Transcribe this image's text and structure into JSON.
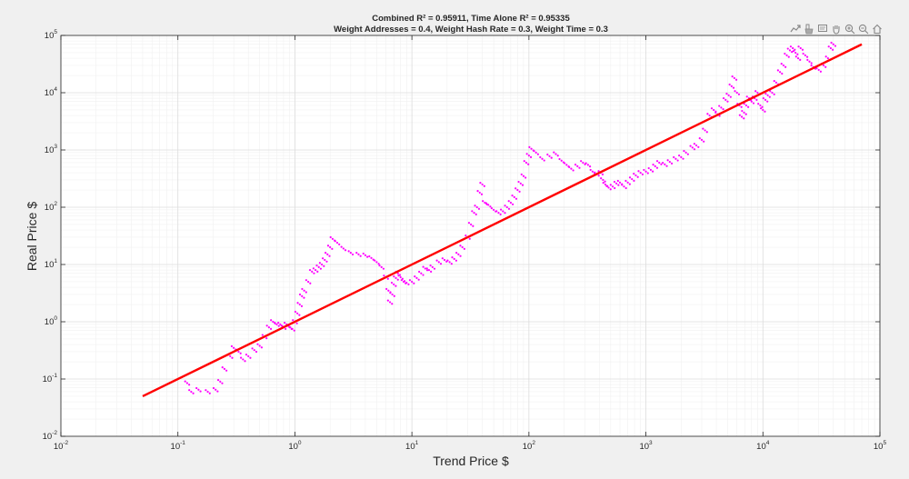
{
  "toolbar": {
    "icons": [
      "export-icon",
      "brush-icon",
      "datatip-icon",
      "pan-icon",
      "zoom-in-icon",
      "zoom-out-icon",
      "home-icon"
    ]
  },
  "colors": {
    "background": "#f0f0f0",
    "axes_background": "#ffffff",
    "scatter": "#ff00ff",
    "trend": "#ff0000",
    "grid": "#e0e0e0"
  },
  "chart_data": {
    "type": "scatter",
    "title_line1": "Combined R² = 0.95911, Time Alone R² = 0.95335",
    "title_line2": "Weight Addresses = 0.4, Weight Hash Rate = 0.3, Weight Time = 0.3",
    "xlabel": "Trend Price $",
    "ylabel": "Real Price $",
    "xscale": "log",
    "yscale": "log",
    "xlim": [
      0.01,
      100000
    ],
    "ylim": [
      0.01,
      100000
    ],
    "grid": true,
    "minor_grid": true,
    "x_ticks": [
      {
        "base": "10",
        "exp": "-2"
      },
      {
        "base": "10",
        "exp": "-1"
      },
      {
        "base": "10",
        "exp": "0"
      },
      {
        "base": "10",
        "exp": "1"
      },
      {
        "base": "10",
        "exp": "2"
      },
      {
        "base": "10",
        "exp": "3"
      },
      {
        "base": "10",
        "exp": "4"
      },
      {
        "base": "10",
        "exp": "5"
      }
    ],
    "y_ticks": [
      {
        "base": "10",
        "exp": "-2"
      },
      {
        "base": "10",
        "exp": "-1"
      },
      {
        "base": "10",
        "exp": "0"
      },
      {
        "base": "10",
        "exp": "1"
      },
      {
        "base": "10",
        "exp": "2"
      },
      {
        "base": "10",
        "exp": "3"
      },
      {
        "base": "10",
        "exp": "4"
      },
      {
        "base": "10",
        "exp": "5"
      }
    ],
    "series": [
      {
        "kind": "scatter",
        "color": "#ff00ff",
        "points": [
          [
            0.12,
            0.085
          ],
          [
            0.13,
            0.06
          ],
          [
            0.15,
            0.065
          ],
          [
            0.18,
            0.06
          ],
          [
            0.21,
            0.065
          ],
          [
            0.23,
            0.09
          ],
          [
            0.25,
            0.15
          ],
          [
            0.28,
            0.25
          ],
          [
            0.3,
            0.35
          ],
          [
            0.33,
            0.3
          ],
          [
            0.36,
            0.22
          ],
          [
            0.4,
            0.25
          ],
          [
            0.45,
            0.32
          ],
          [
            0.5,
            0.38
          ],
          [
            0.55,
            0.55
          ],
          [
            0.6,
            0.8
          ],
          [
            0.65,
            1.0
          ],
          [
            0.7,
            0.9
          ],
          [
            0.75,
            0.9
          ],
          [
            0.8,
            0.8
          ],
          [
            0.85,
            0.9
          ],
          [
            0.9,
            0.8
          ],
          [
            0.95,
            0.75
          ],
          [
            1.0,
            1.0
          ],
          [
            1.05,
            1.4
          ],
          [
            1.1,
            2.0
          ],
          [
            1.15,
            2.8
          ],
          [
            1.2,
            3.5
          ],
          [
            1.3,
            5.0
          ],
          [
            1.4,
            7.5
          ],
          [
            1.5,
            8.0
          ],
          [
            1.6,
            9.0
          ],
          [
            1.7,
            10.0
          ],
          [
            1.8,
            12.0
          ],
          [
            1.9,
            15.0
          ],
          [
            2.0,
            20.0
          ],
          [
            2.1,
            28.0
          ],
          [
            2.3,
            24.0
          ],
          [
            2.6,
            19.0
          ],
          [
            3.0,
            16.0
          ],
          [
            3.5,
            15.0
          ],
          [
            4.0,
            14.5
          ],
          [
            4.5,
            13.0
          ],
          [
            5.0,
            11.0
          ],
          [
            5.5,
            9.0
          ],
          [
            6.0,
            6.0
          ],
          [
            6.3,
            3.5
          ],
          [
            6.5,
            2.2
          ],
          [
            6.8,
            3.0
          ],
          [
            7.0,
            4.5
          ],
          [
            7.3,
            5.8
          ],
          [
            7.6,
            7.0
          ],
          [
            8.0,
            6.0
          ],
          [
            8.5,
            5.0
          ],
          [
            9.0,
            4.8
          ],
          [
            10.0,
            5.0
          ],
          [
            11.0,
            5.8
          ],
          [
            12.0,
            7.0
          ],
          [
            13.0,
            8.5
          ],
          [
            14.0,
            8.0
          ],
          [
            15.0,
            9.0
          ],
          [
            17.0,
            11.0
          ],
          [
            19.0,
            12.0
          ],
          [
            21.0,
            11.0
          ],
          [
            23.0,
            12.5
          ],
          [
            25.0,
            15.0
          ],
          [
            27.0,
            20.0
          ],
          [
            30.0,
            30.0
          ],
          [
            32.0,
            50.0
          ],
          [
            34.0,
            80.0
          ],
          [
            36.0,
            100.0
          ],
          [
            38.0,
            180.0
          ],
          [
            40.0,
            250.0
          ],
          [
            42.0,
            120.0
          ],
          [
            45.0,
            110.0
          ],
          [
            50.0,
            90.0
          ],
          [
            55.0,
            80.0
          ],
          [
            60.0,
            85.0
          ],
          [
            65.0,
            100.0
          ],
          [
            70.0,
            120.0
          ],
          [
            75.0,
            150.0
          ],
          [
            80.0,
            200.0
          ],
          [
            85.0,
            260.0
          ],
          [
            90.0,
            350.0
          ],
          [
            95.0,
            600.0
          ],
          [
            100.0,
            800.0
          ],
          [
            105.0,
            1050.0
          ],
          [
            115.0,
            900.0
          ],
          [
            130.0,
            700.0
          ],
          [
            150.0,
            780.0
          ],
          [
            170.0,
            850.0
          ],
          [
            190.0,
            650.0
          ],
          [
            210.0,
            550.0
          ],
          [
            230.0,
            470.0
          ],
          [
            260.0,
            520.0
          ],
          [
            290.0,
            600.0
          ],
          [
            320.0,
            550.0
          ],
          [
            350.0,
            420.0
          ],
          [
            380.0,
            380.0
          ],
          [
            410.0,
            400.0
          ],
          [
            430.0,
            300.0
          ],
          [
            450.0,
            250.0
          ],
          [
            480.0,
            220.0
          ],
          [
            520.0,
            230.0
          ],
          [
            560.0,
            260.0
          ],
          [
            600.0,
            270.0
          ],
          [
            650.0,
            230.0
          ],
          [
            700.0,
            270.0
          ],
          [
            760.0,
            310.0
          ],
          [
            820.0,
            360.0
          ],
          [
            900.0,
            400.0
          ],
          [
            1000.0,
            420.0
          ],
          [
            1100.0,
            450.0
          ],
          [
            1200.0,
            520.0
          ],
          [
            1300.0,
            600.0
          ],
          [
            1450.0,
            560.0
          ],
          [
            1600.0,
            620.0
          ],
          [
            1800.0,
            700.0
          ],
          [
            2000.0,
            750.0
          ],
          [
            2200.0,
            900.0
          ],
          [
            2500.0,
            1100.0
          ],
          [
            2700.0,
            1200.0
          ],
          [
            3000.0,
            1500.0
          ],
          [
            3200.0,
            2200.0
          ],
          [
            3500.0,
            4000.0
          ],
          [
            3800.0,
            5000.0
          ],
          [
            4100.0,
            4200.0
          ],
          [
            4400.0,
            5500.0
          ],
          [
            4800.0,
            7500.0
          ],
          [
            5100.0,
            9000.0
          ],
          [
            5400.0,
            13000.0
          ],
          [
            5700.0,
            18000.0
          ],
          [
            6000.0,
            10000.0
          ],
          [
            6300.0,
            6000.0
          ],
          [
            6600.0,
            3800.0
          ],
          [
            6900.0,
            4500.0
          ],
          [
            7200.0,
            6000.0
          ],
          [
            7600.0,
            8000.0
          ],
          [
            8000.0,
            7000.0
          ],
          [
            8500.0,
            8000.0
          ],
          [
            9000.0,
            10000.0
          ],
          [
            9500.0,
            6000.0
          ],
          [
            10000.0,
            5000.0
          ],
          [
            10500.0,
            7500.0
          ],
          [
            11000.0,
            9000.0
          ],
          [
            12000.0,
            10000.0
          ],
          [
            13000.0,
            15000.0
          ],
          [
            14000.0,
            23000.0
          ],
          [
            15000.0,
            30000.0
          ],
          [
            16000.0,
            45000.0
          ],
          [
            17000.0,
            55000.0
          ],
          [
            18000.0,
            60000.0
          ],
          [
            19000.0,
            50000.0
          ],
          [
            20000.0,
            40000.0
          ],
          [
            21000.0,
            60000.0
          ],
          [
            23000.0,
            45000.0
          ],
          [
            25000.0,
            35000.0
          ],
          [
            27000.0,
            28000.0
          ],
          [
            30000.0,
            25000.0
          ],
          [
            33000.0,
            30000.0
          ],
          [
            36000.0,
            40000.0
          ],
          [
            38000.0,
            60000.0
          ],
          [
            40000.0,
            70000.0
          ]
        ]
      },
      {
        "kind": "line",
        "color": "#ff0000",
        "points": [
          [
            0.05,
            0.05
          ],
          [
            70000.0,
            70000.0
          ]
        ]
      }
    ]
  }
}
